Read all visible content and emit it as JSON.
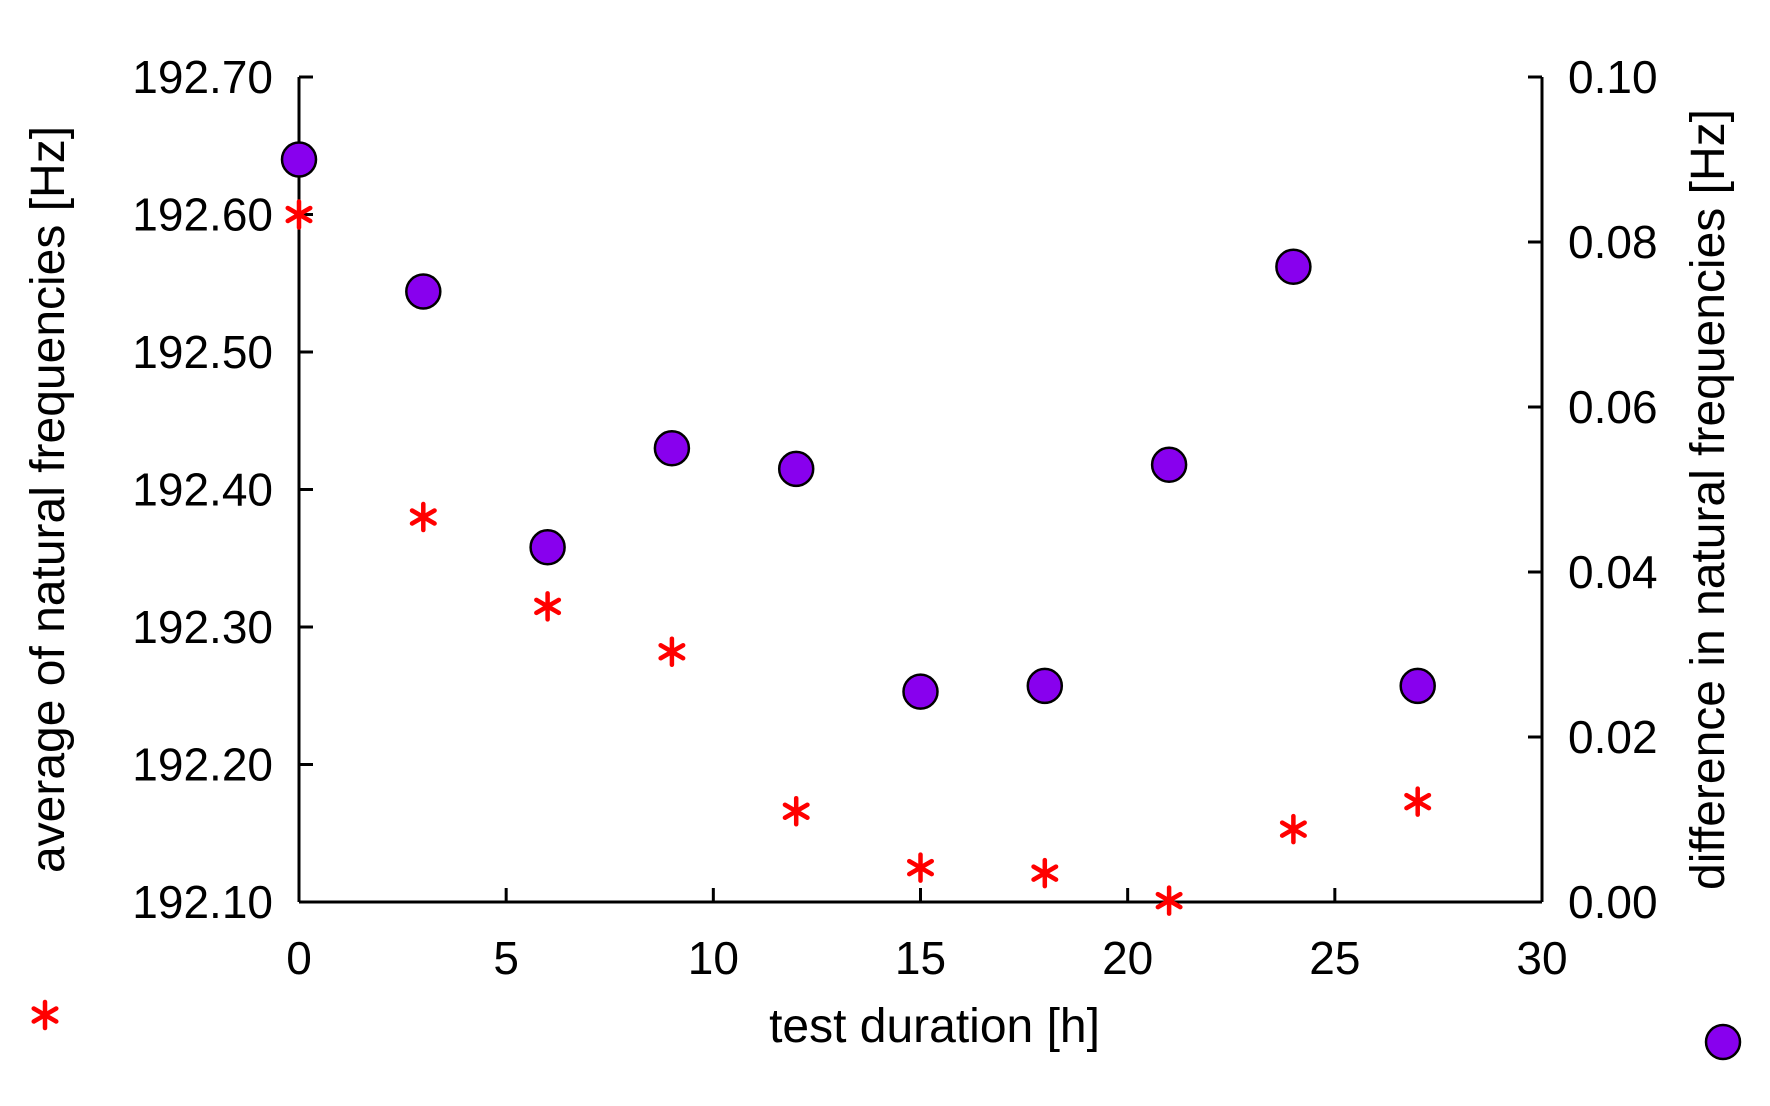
{
  "chart_data": {
    "type": "scatter",
    "title": "",
    "xlabel": "test duration [h]",
    "ylabel_left": "average of natural frequencies [Hz]",
    "ylabel_right": "difference in natural frequencies [Hz]",
    "xlim": [
      0,
      30
    ],
    "ylim_left": [
      192.1,
      192.7
    ],
    "ylim_right": [
      0.0,
      0.1
    ],
    "x_ticks": [
      0,
      5,
      10,
      15,
      20,
      25,
      30
    ],
    "x_tick_labels": [
      "0",
      "5",
      "10",
      "15",
      "20",
      "25",
      "30"
    ],
    "y_left_ticks": [
      192.1,
      192.2,
      192.3,
      192.4,
      192.5,
      192.6,
      192.7
    ],
    "y_left_tick_labels": [
      "192.10",
      "192.20",
      "192.30",
      "192.40",
      "192.50",
      "192.60",
      "192.70"
    ],
    "y_right_ticks": [
      0.0,
      0.02,
      0.04,
      0.06,
      0.08,
      0.1
    ],
    "y_right_tick_labels": [
      "0.00",
      "0.02",
      "0.04",
      "0.06",
      "0.08",
      "0.10"
    ],
    "grid": false,
    "series": [
      {
        "name": "average of natural frequencies",
        "axis": "left",
        "marker": "asterisk",
        "legend_symbol": "*",
        "color": "#ff0000",
        "x": [
          0,
          3,
          6,
          9,
          12,
          15,
          18,
          21,
          24,
          27
        ],
        "y": [
          192.6,
          192.38,
          192.315,
          192.282,
          192.166,
          192.125,
          192.121,
          192.101,
          192.153,
          192.173
        ]
      },
      {
        "name": "difference in natural frequencies",
        "axis": "right",
        "marker": "circle",
        "legend_symbol": "●",
        "color": "#8800ee",
        "edge_color": "#000000",
        "x": [
          0,
          3,
          6,
          9,
          12,
          15,
          18,
          21,
          24,
          27
        ],
        "y": [
          0.09,
          0.074,
          0.043,
          0.055,
          0.0525,
          0.0255,
          0.0262,
          0.053,
          0.077,
          0.0262
        ]
      }
    ]
  }
}
